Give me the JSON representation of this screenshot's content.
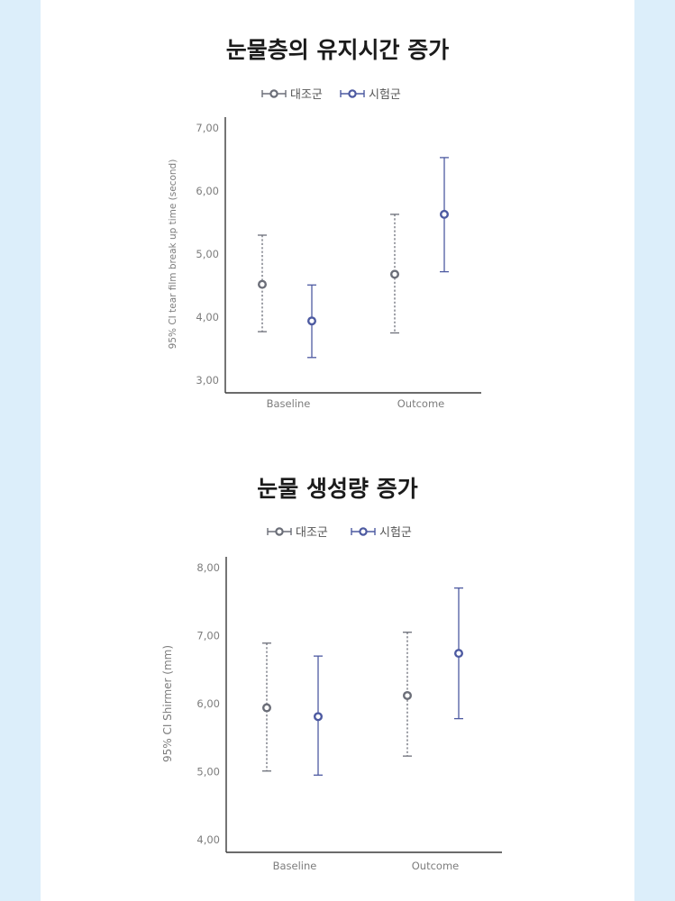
{
  "chart_data": [
    {
      "type": "errorbar",
      "title": "눈물층의 유지시간 증가",
      "ylabel": "95% CI tear film break up time (second)",
      "ylim": [
        3.0,
        7.0
      ],
      "yticks": [
        "3,00",
        "4,00",
        "5,00",
        "6,00",
        "7,00"
      ],
      "categories": [
        "Baseline",
        "Outcome"
      ],
      "legend_position": "top-center",
      "series": [
        {
          "name": "대조군",
          "color": "#6b6e78",
          "style": "dotted",
          "mean": [
            4.52,
            4.68
          ],
          "lower": [
            3.77,
            3.75
          ],
          "upper": [
            5.3,
            5.63
          ]
        },
        {
          "name": "시험군",
          "color": "#4d5aa1",
          "style": "solid",
          "mean": [
            3.94,
            5.63
          ],
          "lower": [
            3.36,
            4.72
          ],
          "upper": [
            4.51,
            6.53
          ]
        }
      ]
    },
    {
      "type": "errorbar",
      "title": "눈물 생성량 증가",
      "ylabel": "95% CI Shirmer (mm)",
      "ylim": [
        4.0,
        8.0
      ],
      "yticks": [
        "4,00",
        "5,00",
        "6,00",
        "7,00",
        "8,00"
      ],
      "categories": [
        "Baseline",
        "Outcome"
      ],
      "legend_position": "top-center",
      "series": [
        {
          "name": "대조군",
          "color": "#6b6e78",
          "style": "dotted",
          "mean": [
            5.94,
            6.12
          ],
          "lower": [
            5.01,
            5.23
          ],
          "upper": [
            6.89,
            7.05
          ]
        },
        {
          "name": "시험군",
          "color": "#4d5aa1",
          "style": "solid",
          "mean": [
            5.81,
            6.74
          ],
          "lower": [
            4.95,
            5.78
          ],
          "upper": [
            6.7,
            7.7
          ]
        }
      ]
    }
  ]
}
